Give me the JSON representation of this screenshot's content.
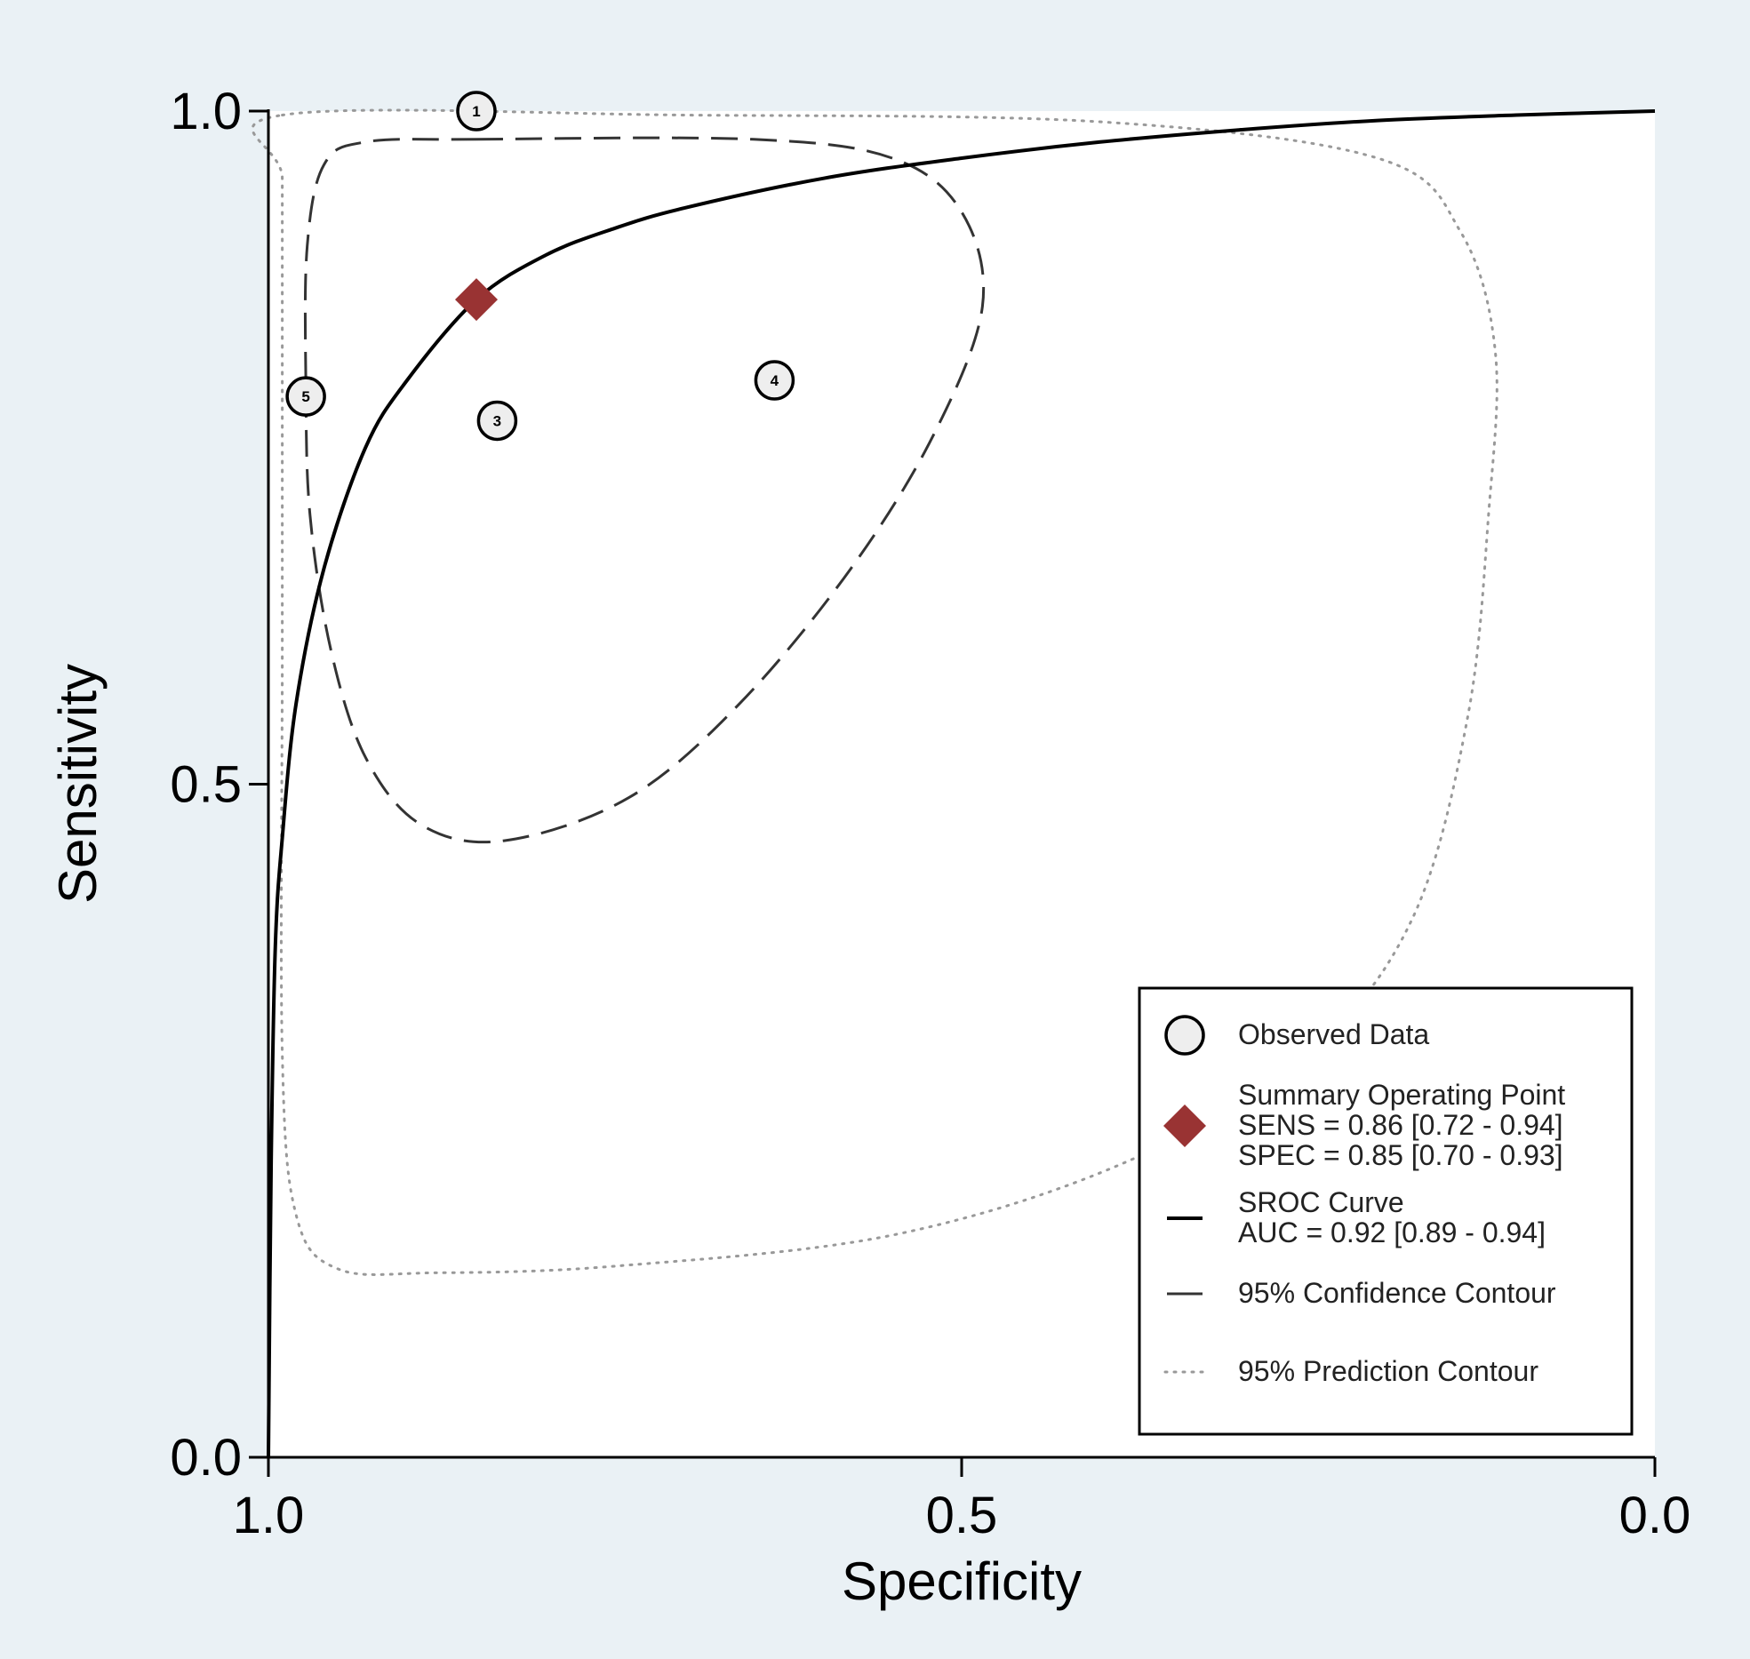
{
  "chart_data": {
    "type": "scatter",
    "title": "",
    "xlabel": "Specificity",
    "ylabel": "Sensitivity",
    "xlim": [
      1.0,
      0.0
    ],
    "ylim": [
      0.0,
      1.0
    ],
    "x_reversed": true,
    "x_ticks": [
      "1.0",
      "0.5",
      "0.0"
    ],
    "y_ticks": [
      "0.0",
      "0.5",
      "1.0"
    ],
    "grid": false,
    "legend_position": "bottom-right",
    "colors": {
      "background": "#eaf1f5",
      "plot_area": "#ffffff",
      "summary_point": "#993333",
      "curve": "#000000",
      "confidence": "#333333",
      "prediction": "#999999",
      "marker_fill": "#eeeeee"
    },
    "observed_data": [
      {
        "label": "1",
        "specificity": 0.85,
        "sensitivity": 1.0
      },
      {
        "label": "3",
        "specificity": 0.835,
        "sensitivity": 0.77
      },
      {
        "label": "4",
        "specificity": 0.635,
        "sensitivity": 0.8
      },
      {
        "label": "5",
        "specificity": 0.973,
        "sensitivity": 0.788
      }
    ],
    "summary_point": {
      "specificity": 0.85,
      "sensitivity": 0.86
    },
    "sroc_curve": [
      [
        1.0,
        0.0
      ],
      [
        0.998,
        0.22
      ],
      [
        0.995,
        0.38
      ],
      [
        0.99,
        0.46
      ],
      [
        0.98,
        0.56
      ],
      [
        0.96,
        0.66
      ],
      [
        0.93,
        0.75
      ],
      [
        0.9,
        0.8
      ],
      [
        0.85,
        0.86
      ],
      [
        0.8,
        0.893
      ],
      [
        0.75,
        0.913
      ],
      [
        0.7,
        0.928
      ],
      [
        0.6,
        0.95
      ],
      [
        0.5,
        0.965
      ],
      [
        0.4,
        0.977
      ],
      [
        0.3,
        0.986
      ],
      [
        0.2,
        0.993
      ],
      [
        0.1,
        0.997
      ],
      [
        0.0,
        1.0
      ]
    ],
    "confidence_contour": [
      [
        0.85,
        0.979
      ],
      [
        0.65,
        0.979
      ],
      [
        0.55,
        0.965
      ],
      [
        0.5,
        0.925
      ],
      [
        0.485,
        0.855
      ],
      [
        0.52,
        0.76
      ],
      [
        0.58,
        0.66
      ],
      [
        0.66,
        0.56
      ],
      [
        0.74,
        0.49
      ],
      [
        0.83,
        0.458
      ],
      [
        0.89,
        0.47
      ],
      [
        0.93,
        0.52
      ],
      [
        0.955,
        0.6
      ],
      [
        0.97,
        0.7
      ],
      [
        0.973,
        0.8
      ],
      [
        0.972,
        0.9
      ],
      [
        0.96,
        0.96
      ],
      [
        0.93,
        0.977
      ]
    ],
    "prediction_contour": [
      [
        0.99,
        0.997
      ],
      [
        0.7,
        0.997
      ],
      [
        0.4,
        0.992
      ],
      [
        0.2,
        0.965
      ],
      [
        0.14,
        0.91
      ],
      [
        0.115,
        0.82
      ],
      [
        0.12,
        0.7
      ],
      [
        0.135,
        0.55
      ],
      [
        0.175,
        0.4
      ],
      [
        0.25,
        0.3
      ],
      [
        0.38,
        0.22
      ],
      [
        0.55,
        0.165
      ],
      [
        0.75,
        0.142
      ],
      [
        0.88,
        0.137
      ],
      [
        0.95,
        0.14
      ],
      [
        0.98,
        0.18
      ],
      [
        0.99,
        0.3
      ],
      [
        0.99,
        0.6
      ],
      [
        0.99,
        0.85
      ],
      [
        0.99,
        0.95
      ]
    ],
    "legend": [
      {
        "key": "observed",
        "lines": [
          "Observed Data"
        ]
      },
      {
        "key": "summary",
        "lines": [
          "Summary Operating Point",
          "SENS = 0.86 [0.72 - 0.94]",
          "SPEC = 0.85 [0.70 - 0.93]"
        ]
      },
      {
        "key": "sroc",
        "lines": [
          "SROC Curve",
          "AUC = 0.92 [0.89 - 0.94]"
        ]
      },
      {
        "key": "confidence",
        "lines": [
          "95% Confidence Contour"
        ]
      },
      {
        "key": "prediction",
        "lines": [
          "95% Prediction Contour"
        ]
      }
    ]
  }
}
